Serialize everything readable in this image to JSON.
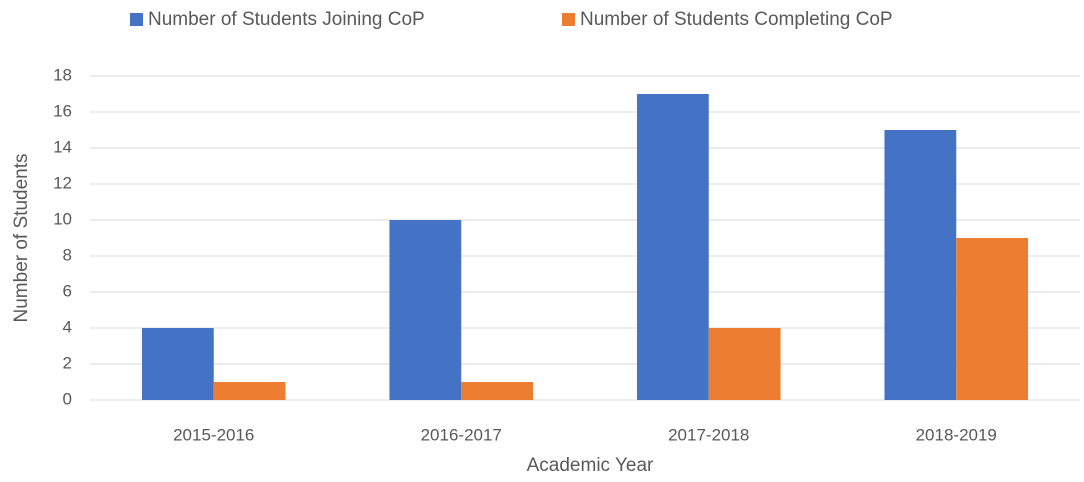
{
  "chart_data": {
    "type": "bar",
    "categories": [
      "2015-2016",
      "2016-2017",
      "2017-2018",
      "2018-2019"
    ],
    "series": [
      {
        "name": "Number of Students Joining CoP",
        "color": "#4472c4",
        "values": [
          4,
          10,
          17,
          15
        ]
      },
      {
        "name": "Number of Students Completing CoP",
        "color": "#ed7d31",
        "values": [
          1,
          1,
          4,
          9
        ]
      }
    ],
    "xlabel": "Academic Year",
    "ylabel": "Number of Students",
    "ylim": [
      0,
      18
    ],
    "yticks": [
      0,
      2,
      4,
      6,
      8,
      10,
      12,
      14,
      16,
      18
    ],
    "grid": true,
    "legend": "top"
  }
}
